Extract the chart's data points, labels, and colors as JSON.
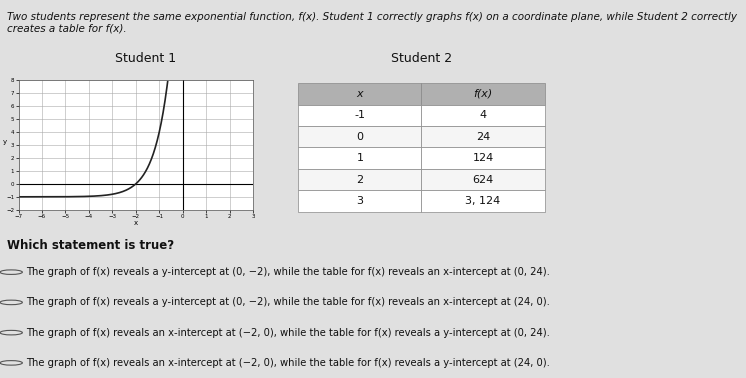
{
  "title": "Two students represent the same exponential function, f(x). Student 1 correctly graphs f(x) on a coordinate plane, while Student 2 correctly creates a table for f(x).",
  "student1_label": "Student 1",
  "student2_label": "Student 2",
  "table_headers": [
    "x",
    "f(x)"
  ],
  "table_data": [
    [
      -1,
      4
    ],
    [
      0,
      24
    ],
    [
      1,
      124
    ],
    [
      2,
      624
    ],
    [
      3,
      "3, 124"
    ]
  ],
  "question": "Which statement is true?",
  "choices": [
    "The graph of f(x) reveals a y-intercept at (0, −2), while the table for f(x) reveals an x-intercept at (0, 24).",
    "The graph of f(x) reveals a y-intercept at (0, −2), while the table for f(x) reveals an x-intercept at (24, 0).",
    "The graph of f(x) reveals an x-intercept at (−2, 0), while the table for f(x) reveals a y-intercept at (0, 24).",
    "The graph of f(x) reveals an x-intercept at (−2, 0), while the table for f(x) reveals a y-intercept at (24, 0)."
  ],
  "graph_xlim": [
    -7,
    3
  ],
  "graph_ylim": [
    -2,
    8
  ],
  "graph_xticks": [
    -7,
    -6,
    -5,
    -4,
    -3,
    -2,
    -1,
    0,
    1,
    2,
    3
  ],
  "graph_yticks": [
    -2,
    -1,
    0,
    1,
    2,
    3,
    4,
    5,
    6,
    7,
    8
  ],
  "bg_color": "#e8e8e8",
  "panel_bg": "#f0f0f0",
  "header_bg": "#c0c0c0",
  "table_header_bg": "#a0a0a0",
  "table_row_bg": "#ffffff",
  "border_color": "#888888",
  "text_color": "#111111",
  "curve_color": "#222222",
  "grid_color": "#aaaaaa"
}
